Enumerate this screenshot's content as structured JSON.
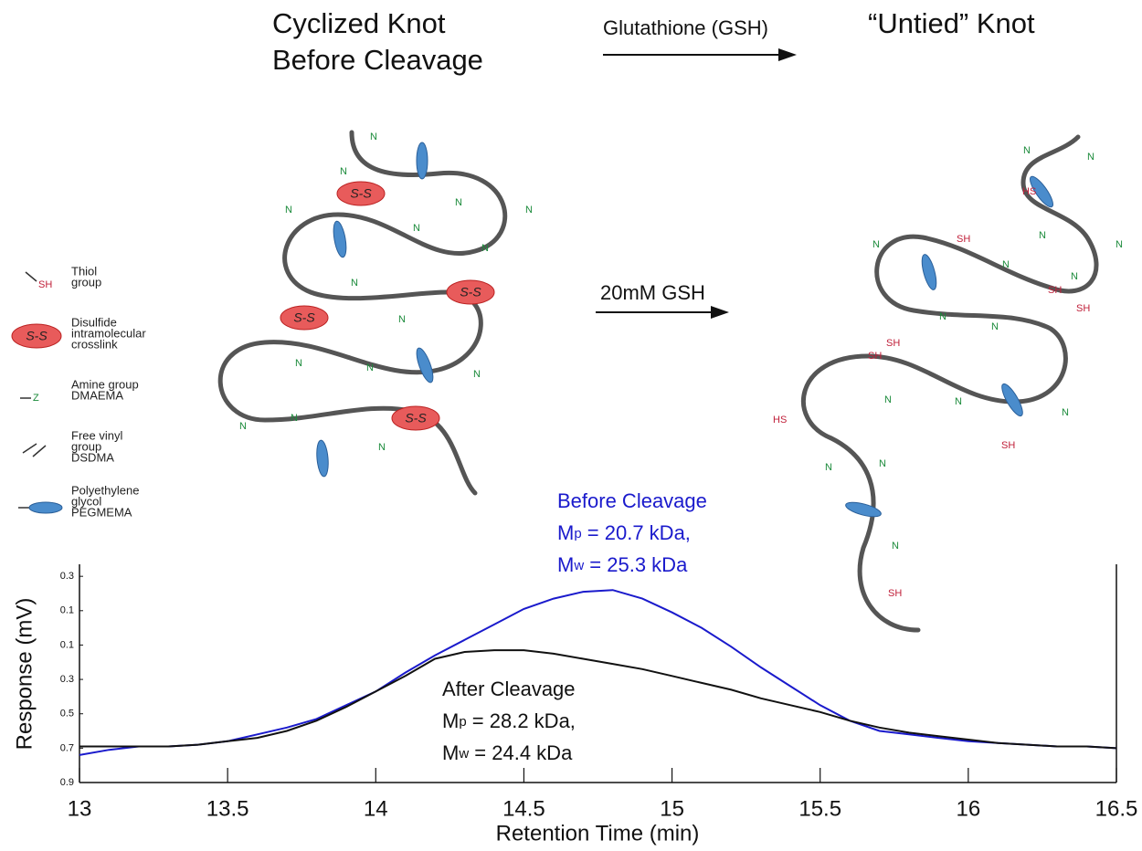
{
  "header": {
    "left_title": [
      "Cyclized Knot",
      "Before Cleavage"
    ],
    "reagent": "Glutathione (GSH)",
    "right_title": "“Untied” Knot",
    "step": "20mM GSH"
  },
  "diagram": {
    "amine_mark": "Z",
    "amine": "N",
    "disulfide": "S-S",
    "thiol": "SH",
    "thiol_reversed": "HS"
  },
  "legend": [
    [
      "Thiol",
      "group"
    ],
    [
      "Disulfide",
      "intramolecular",
      "crosslink"
    ],
    [
      "Amine group",
      "DMAEMA"
    ],
    [
      "Free vinyl",
      "group",
      "DSDMA"
    ],
    [
      "Polyethylene",
      "glycol",
      "PEGMEMA"
    ]
  ],
  "chart_data": {
    "type": "line",
    "x_label": "Retention Time (min)",
    "y_label": "Response (mV)",
    "x": [
      13,
      13.1,
      13.2,
      13.3,
      13.4,
      13.5,
      13.6,
      13.7,
      13.8,
      13.9,
      14,
      14.1,
      14.2,
      14.3,
      14.4,
      14.5,
      14.6,
      14.7,
      14.8,
      14.9,
      15,
      15.1,
      15.2,
      15.3,
      15.4,
      15.5,
      15.6,
      15.7,
      15.8,
      15.9,
      16,
      16.1,
      16.2,
      16.3,
      16.4,
      16.5
    ],
    "series": [
      {
        "name": "Before Cleavage",
        "color": "#1a1acc",
        "values": [
          -0.74,
          -0.71,
          -0.69,
          -0.69,
          -0.68,
          -0.66,
          -0.62,
          -0.58,
          -0.53,
          -0.45,
          -0.37,
          -0.26,
          -0.16,
          -0.07,
          0.02,
          0.11,
          0.17,
          0.21,
          0.22,
          0.17,
          0.09,
          0.0,
          -0.11,
          -0.23,
          -0.34,
          -0.45,
          -0.54,
          -0.6,
          -0.62,
          -0.64,
          -0.66,
          -0.67,
          -0.68,
          -0.69,
          -0.69,
          -0.7
        ]
      },
      {
        "name": "After Cleavage",
        "color": "#111111",
        "values": [
          -0.69,
          -0.69,
          -0.69,
          -0.69,
          -0.68,
          -0.66,
          -0.64,
          -0.6,
          -0.54,
          -0.46,
          -0.37,
          -0.28,
          -0.18,
          -0.14,
          -0.13,
          -0.13,
          -0.15,
          -0.18,
          -0.21,
          -0.24,
          -0.28,
          -0.32,
          -0.36,
          -0.41,
          -0.45,
          -0.49,
          -0.54,
          -0.58,
          -0.61,
          -0.63,
          -0.65,
          -0.67,
          -0.68,
          -0.69,
          -0.69,
          -0.7
        ]
      }
    ],
    "annotations": [
      {
        "title": "Before Cleavage",
        "lines": [
          {
            "m": "M",
            "sub": "p",
            "rest": " = 20.7 kDa,"
          },
          {
            "m": "M",
            "sub": "w",
            "rest": " = 25.3 kDa"
          }
        ]
      },
      {
        "title": "After Cleavage",
        "lines": [
          {
            "m": "M",
            "sub": "p",
            "rest": " = 28.2 kDa,"
          },
          {
            "m": "M",
            "sub": "w",
            "rest": " = 24.4 kDa"
          }
        ]
      }
    ],
    "xlim": [
      13,
      16.5
    ],
    "xticks": [
      13,
      13.5,
      14,
      14.5,
      15,
      15.5,
      16,
      16.5
    ],
    "ylim": [
      -0.9,
      0.37
    ],
    "yticks": [
      {
        "value": -0.9,
        "label": "0.9"
      },
      {
        "value": -0.7,
        "label": "0.7"
      },
      {
        "value": -0.5,
        "label": "0.5"
      },
      {
        "value": -0.3,
        "label": "0.3"
      },
      {
        "value": -0.1,
        "label": "0.1"
      },
      0.1,
      0.3
    ],
    "grid": false
  }
}
